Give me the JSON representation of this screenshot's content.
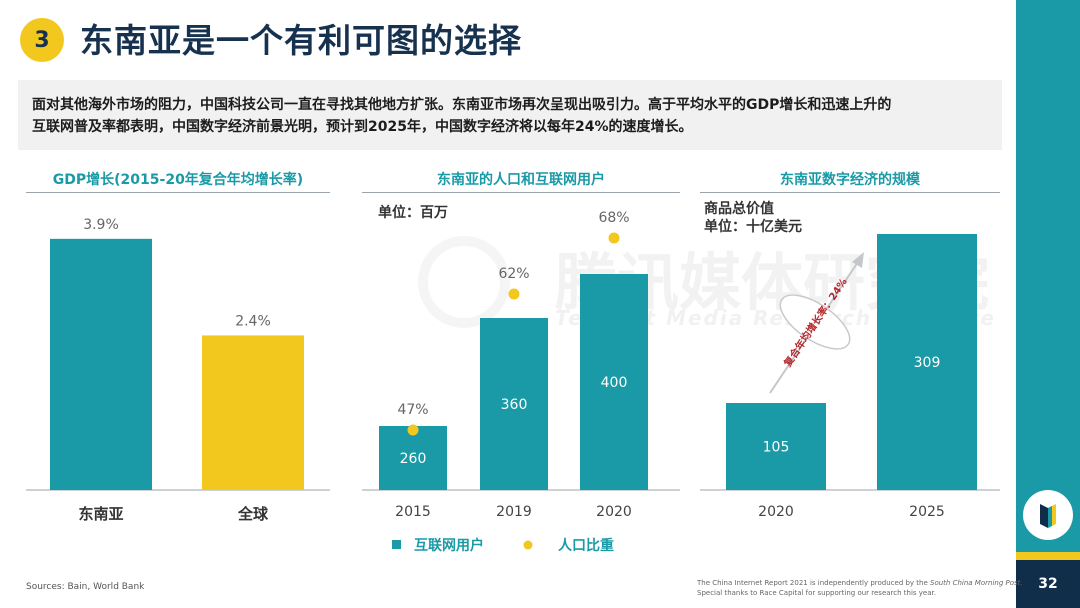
{
  "header": {
    "section_number": "3",
    "title": "东南亚是一个有利可图的选择"
  },
  "intro": {
    "line1": "面对其他海外市场的阻力，中国科技公司一直在寻找其他地方扩张。东南亚市场再次呈现出吸引力。高于平均水平的GDP增长和迅速上升的",
    "line2": "互联网普及率都表明，中国数字经济前景光明，预计到2025年，中国数字经济将以每年24%的速度增长。"
  },
  "page_number": "32",
  "footer": {
    "sources": "Sources: Bain, World Bank",
    "credit_prefix": "The China Internet Report 2021 is independently produced by the ",
    "credit_pub": "South China Morning Post",
    "credit_suffix": ".",
    "credit_line2": "Special thanks to Race Capital for supporting our research this year."
  },
  "watermark": {
    "cn": "腾讯媒体研究院",
    "en": "Tencent Media Research Institute"
  },
  "colors": {
    "teal": "#1a9aa6",
    "yellow": "#f2c81f",
    "navy": "#16324f",
    "dot": "#f2c81f"
  },
  "chart_data": [
    {
      "type": "bar",
      "title": "GDP增长(2015-20年复合年均增长率)",
      "categories": [
        "东南亚",
        "全球"
      ],
      "values": [
        3.9,
        2.4
      ],
      "value_labels": [
        "3.9%",
        "2.4%"
      ],
      "bar_colors": [
        "#1a9aa6",
        "#f2c81f"
      ],
      "ylim": [
        0,
        5
      ]
    },
    {
      "type": "bar",
      "title": "东南亚的人口和互联网用户",
      "unit": "单位：百万",
      "categories": [
        "2015",
        "2019",
        "2020"
      ],
      "series": [
        {
          "name": "互联网用户",
          "values": [
            260,
            360,
            400
          ],
          "labels": [
            "260",
            "360",
            "400"
          ]
        },
        {
          "name": "人口比重",
          "values": [
            47,
            62,
            68
          ],
          "labels": [
            "47%",
            "62%",
            "68%"
          ]
        }
      ],
      "legend": [
        "互联网用户",
        "人口比重"
      ],
      "ylim": [
        0,
        550
      ]
    },
    {
      "type": "bar",
      "title": "东南亚数字经济的规模",
      "unit_line1": "商品总价值",
      "unit_line2": "单位：十亿美元",
      "categories": [
        "2020",
        "2025"
      ],
      "values": [
        105,
        309
      ],
      "labels": [
        "105",
        "309"
      ],
      "annotation": "复合年均增长率：24%",
      "ylim": [
        0,
        350
      ]
    }
  ]
}
